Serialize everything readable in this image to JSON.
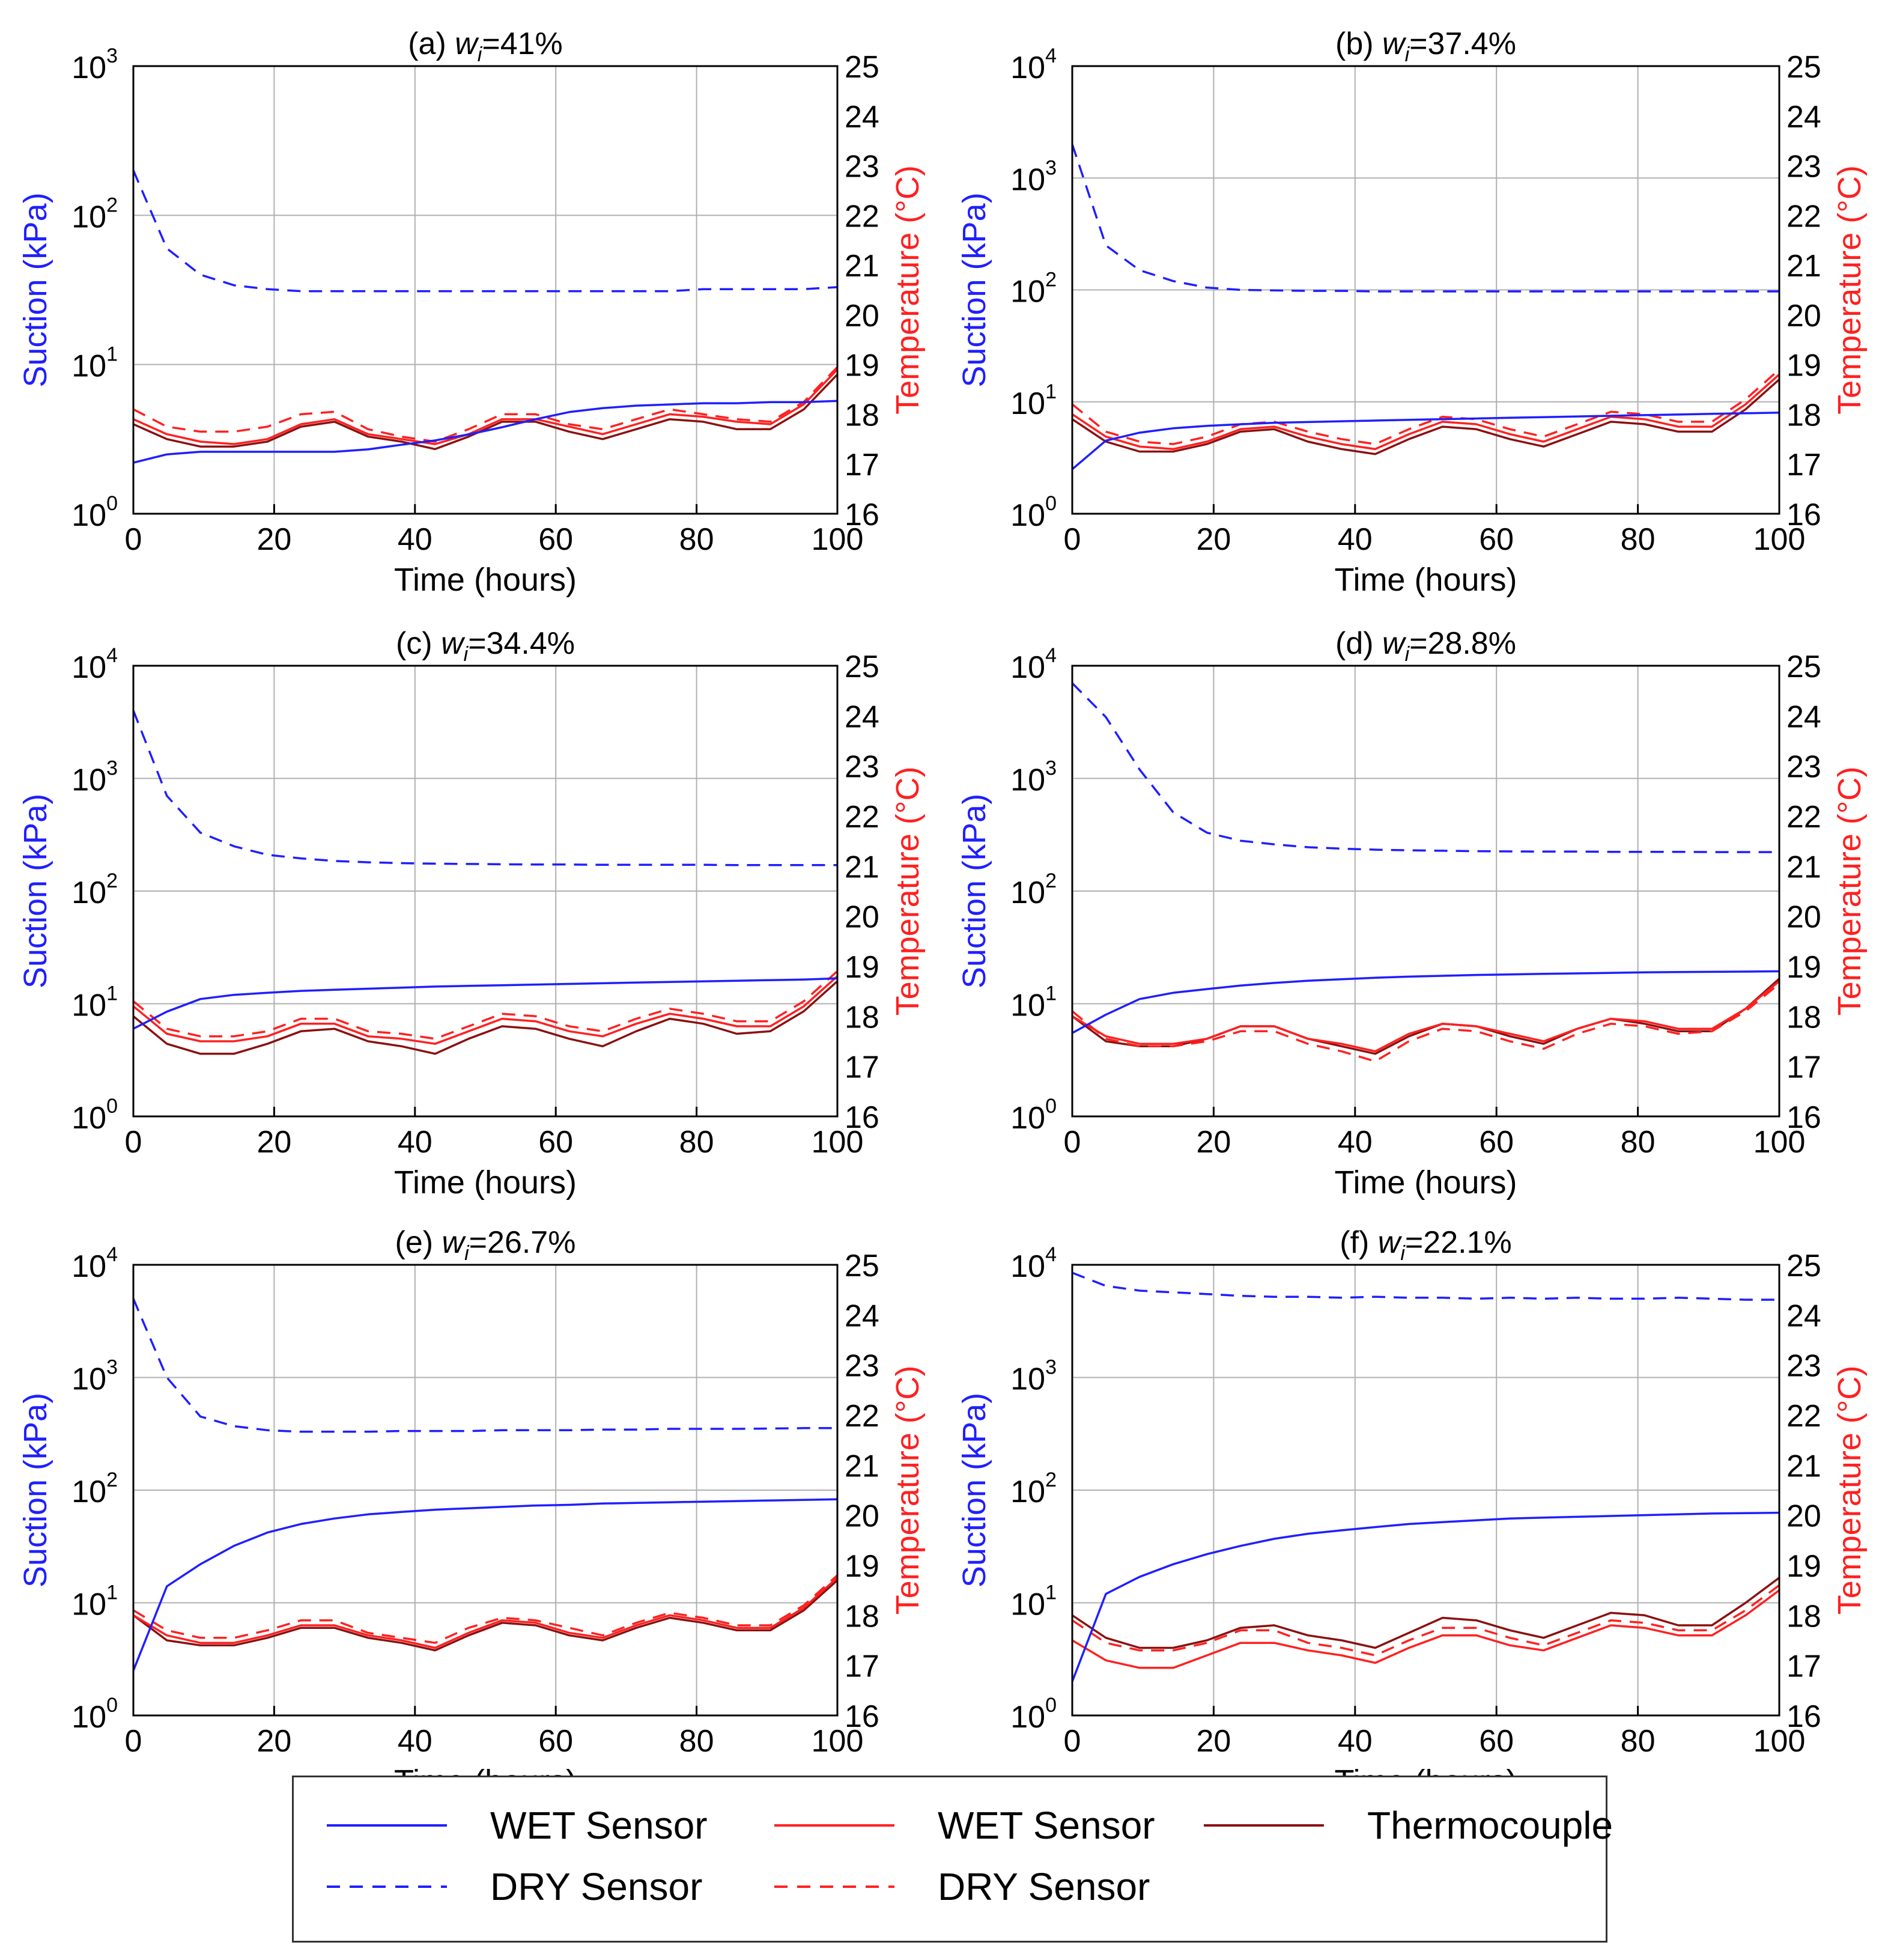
{
  "chart_data": [
    {
      "panel": "(a)",
      "type": "line",
      "title_prefix": "(a) ",
      "title_var": "w",
      "title_sub": "i",
      "title_suffix": "=41%",
      "xlabel": "Time (hours)",
      "ylabel_left": "Suction (kPa)",
      "ylabel_right": "Temperature (°C)",
      "xlim": [
        0,
        100
      ],
      "ylim_left": [
        1,
        1000
      ],
      "ylog_left": true,
      "ylim_right": [
        16,
        25
      ],
      "x_ticks": [
        "0",
        "20",
        "40",
        "60",
        "80",
        "100"
      ],
      "y_left_exps": [
        "0",
        "1",
        "2",
        "3"
      ],
      "y_right_ticks": [
        "16",
        "17",
        "18",
        "19",
        "20",
        "21",
        "22",
        "23",
        "24",
        "25"
      ],
      "grid": true,
      "suction": {
        "x": [
          0,
          100
        ],
        "wet": [
          2.2,
          2.5,
          2.6,
          2.6,
          2.6,
          2.6,
          2.6,
          2.7,
          2.9,
          3.1,
          3.4,
          3.8,
          4.3,
          4.8,
          5.1,
          5.3,
          5.4,
          5.5,
          5.5,
          5.6,
          5.6,
          5.7
        ],
        "dry": [
          200,
          60,
          40,
          34,
          32,
          31,
          31,
          31,
          31,
          31,
          31,
          31,
          31,
          31,
          31,
          31,
          31,
          32,
          32,
          32,
          32,
          33
        ]
      },
      "temperature": {
        "x": [
          0,
          100
        ],
        "wet": [
          17.9,
          17.6,
          17.45,
          17.4,
          17.5,
          17.8,
          17.9,
          17.6,
          17.5,
          17.4,
          17.6,
          17.9,
          17.9,
          17.75,
          17.6,
          17.8,
          18.0,
          17.95,
          17.85,
          17.8,
          18.2,
          18.9
        ],
        "dry": [
          18.1,
          17.75,
          17.65,
          17.65,
          17.75,
          18.0,
          18.05,
          17.7,
          17.55,
          17.45,
          17.7,
          18.0,
          18.0,
          17.8,
          17.7,
          17.9,
          18.1,
          18.0,
          17.9,
          17.85,
          18.25,
          18.95
        ],
        "thermocouple": [
          17.8,
          17.5,
          17.35,
          17.35,
          17.45,
          17.75,
          17.85,
          17.55,
          17.45,
          17.3,
          17.55,
          17.85,
          17.85,
          17.65,
          17.5,
          17.7,
          17.9,
          17.85,
          17.7,
          17.7,
          18.1,
          18.8
        ]
      }
    },
    {
      "panel": "(b)",
      "type": "line",
      "title_prefix": "(b) ",
      "title_var": "w",
      "title_sub": "i",
      "title_suffix": "=37.4%",
      "xlabel": "Time (hours)",
      "ylabel_left": "Suction (kPa)",
      "ylabel_right": "Temperature (°C)",
      "xlim": [
        0,
        100
      ],
      "ylim_left": [
        1,
        10000
      ],
      "ylog_left": true,
      "ylim_right": [
        16,
        25
      ],
      "x_ticks": [
        "0",
        "20",
        "40",
        "60",
        "80",
        "100"
      ],
      "y_left_exps": [
        "0",
        "1",
        "2",
        "3",
        "4"
      ],
      "y_right_ticks": [
        "16",
        "17",
        "18",
        "19",
        "20",
        "21",
        "22",
        "23",
        "24",
        "25"
      ],
      "grid": true,
      "suction": {
        "x": [
          0,
          100
        ],
        "wet": [
          2.5,
          4.5,
          5.3,
          5.8,
          6.1,
          6.3,
          6.5,
          6.6,
          6.7,
          6.8,
          6.9,
          7.0,
          7.1,
          7.2,
          7.3,
          7.4,
          7.5,
          7.6,
          7.7,
          7.8,
          7.9,
          8.0
        ],
        "dry": [
          2000,
          250,
          150,
          120,
          105,
          100,
          99,
          98,
          98,
          97,
          97,
          97,
          97,
          97,
          97,
          97,
          97,
          97,
          97,
          97,
          97,
          97
        ]
      },
      "temperature": {
        "x": [
          0,
          100
        ],
        "wet": [
          18.0,
          17.55,
          17.35,
          17.3,
          17.45,
          17.7,
          17.75,
          17.55,
          17.4,
          17.3,
          17.6,
          17.85,
          17.8,
          17.6,
          17.45,
          17.7,
          17.95,
          17.9,
          17.75,
          17.75,
          18.2,
          18.8
        ],
        "dry": [
          18.2,
          17.65,
          17.45,
          17.4,
          17.55,
          17.8,
          17.85,
          17.65,
          17.5,
          17.4,
          17.7,
          17.95,
          17.9,
          17.7,
          17.55,
          17.8,
          18.05,
          18.0,
          17.85,
          17.85,
          18.3,
          18.9
        ],
        "thermocouple": [
          17.9,
          17.45,
          17.25,
          17.25,
          17.4,
          17.65,
          17.7,
          17.45,
          17.3,
          17.2,
          17.5,
          17.75,
          17.7,
          17.5,
          17.35,
          17.6,
          17.85,
          17.8,
          17.65,
          17.65,
          18.1,
          18.7
        ]
      }
    },
    {
      "panel": "(c)",
      "type": "line",
      "title_prefix": "(c) ",
      "title_var": "w",
      "title_sub": "i",
      "title_suffix": "=34.4%",
      "xlabel": "Time (hours)",
      "ylabel_left": "Suction (kPa)",
      "ylabel_right": "Temperature (°C)",
      "xlim": [
        0,
        100
      ],
      "ylim_left": [
        1,
        10000
      ],
      "ylog_left": true,
      "ylim_right": [
        16,
        25
      ],
      "x_ticks": [
        "0",
        "20",
        "40",
        "60",
        "80",
        "100"
      ],
      "y_left_exps": [
        "0",
        "1",
        "2",
        "3",
        "4"
      ],
      "y_right_ticks": [
        "16",
        "17",
        "18",
        "19",
        "20",
        "21",
        "22",
        "23",
        "24",
        "25"
      ],
      "grid": true,
      "suction": {
        "x": [
          0,
          100
        ],
        "wet": [
          6,
          8.5,
          11,
          12,
          12.5,
          13,
          13.3,
          13.6,
          13.9,
          14.2,
          14.4,
          14.6,
          14.8,
          15.0,
          15.2,
          15.4,
          15.6,
          15.8,
          16.0,
          16.2,
          16.4,
          16.8
        ],
        "dry": [
          4000,
          700,
          330,
          250,
          210,
          195,
          185,
          180,
          177,
          175,
          174,
          173,
          172,
          172,
          171,
          171,
          171,
          171,
          170,
          170,
          170,
          170
        ]
      },
      "temperature": {
        "x": [
          0,
          100
        ],
        "wet": [
          18.2,
          17.65,
          17.5,
          17.5,
          17.6,
          17.85,
          17.85,
          17.6,
          17.55,
          17.45,
          17.7,
          17.95,
          17.9,
          17.7,
          17.6,
          17.85,
          18.05,
          17.95,
          17.8,
          17.8,
          18.2,
          18.8
        ],
        "dry": [
          18.3,
          17.75,
          17.6,
          17.6,
          17.7,
          17.95,
          17.95,
          17.7,
          17.65,
          17.55,
          17.8,
          18.05,
          18.0,
          17.8,
          17.7,
          17.95,
          18.15,
          18.05,
          17.9,
          17.9,
          18.3,
          18.9
        ],
        "thermocouple": [
          18.0,
          17.45,
          17.25,
          17.25,
          17.45,
          17.7,
          17.75,
          17.5,
          17.4,
          17.25,
          17.55,
          17.8,
          17.75,
          17.55,
          17.4,
          17.7,
          17.95,
          17.85,
          17.65,
          17.7,
          18.1,
          18.7
        ]
      }
    },
    {
      "panel": "(d)",
      "type": "line",
      "title_prefix": "(d) ",
      "title_var": "w",
      "title_sub": "i",
      "title_suffix": "=28.8%",
      "xlabel": "Time (hours)",
      "ylabel_left": "Suction (kPa)",
      "ylabel_right": "Temperature (°C)",
      "xlim": [
        0,
        100
      ],
      "ylim_left": [
        1,
        10000
      ],
      "ylog_left": true,
      "ylim_right": [
        16,
        25
      ],
      "x_ticks": [
        "0",
        "20",
        "40",
        "60",
        "80",
        "100"
      ],
      "y_left_exps": [
        "0",
        "1",
        "2",
        "3",
        "4"
      ],
      "y_right_ticks": [
        "16",
        "17",
        "18",
        "19",
        "20",
        "21",
        "22",
        "23",
        "24",
        "25"
      ],
      "grid": true,
      "suction": {
        "x": [
          0,
          100
        ],
        "wet": [
          5.5,
          8,
          11,
          12.5,
          13.5,
          14.5,
          15.3,
          16,
          16.5,
          17,
          17.4,
          17.7,
          18.0,
          18.2,
          18.4,
          18.6,
          18.8,
          19.0,
          19.1,
          19.2,
          19.3,
          19.4
        ],
        "dry": [
          7000,
          3500,
          1200,
          500,
          330,
          280,
          260,
          245,
          238,
          233,
          230,
          228,
          226,
          225,
          224,
          224,
          223,
          223,
          223,
          222,
          222,
          222
        ]
      },
      "temperature": {
        "x": [
          0,
          100
        ],
        "wet": [
          18.0,
          17.6,
          17.45,
          17.45,
          17.55,
          17.8,
          17.8,
          17.55,
          17.45,
          17.3,
          17.65,
          17.85,
          17.8,
          17.65,
          17.5,
          17.75,
          17.95,
          17.9,
          17.75,
          17.75,
          18.15,
          18.7
        ],
        "dry": [
          18.1,
          17.55,
          17.4,
          17.4,
          17.5,
          17.7,
          17.7,
          17.45,
          17.3,
          17.1,
          17.5,
          17.75,
          17.7,
          17.5,
          17.35,
          17.65,
          17.85,
          17.8,
          17.65,
          17.7,
          18.1,
          18.65
        ],
        "thermocouple": [
          18.0,
          17.5,
          17.4,
          17.4,
          17.55,
          17.8,
          17.8,
          17.55,
          17.4,
          17.25,
          17.6,
          17.85,
          17.8,
          17.6,
          17.45,
          17.75,
          17.95,
          17.85,
          17.7,
          17.7,
          18.15,
          18.75
        ]
      }
    },
    {
      "panel": "(e)",
      "type": "line",
      "title_prefix": "(e) ",
      "title_var": "w",
      "title_sub": "i",
      "title_suffix": "=26.7%",
      "xlabel": "Time (hours)",
      "ylabel_left": "Suction (kPa)",
      "ylabel_right": "Temperature (°C)",
      "xlim": [
        0,
        100
      ],
      "ylim_left": [
        1,
        10000
      ],
      "ylog_left": true,
      "ylim_right": [
        16,
        25
      ],
      "x_ticks": [
        "0",
        "20",
        "40",
        "60",
        "80",
        "100"
      ],
      "y_left_exps": [
        "0",
        "1",
        "2",
        "3",
        "4"
      ],
      "y_right_ticks": [
        "16",
        "17",
        "18",
        "19",
        "20",
        "21",
        "22",
        "23",
        "24",
        "25"
      ],
      "grid": true,
      "suction": {
        "x": [
          0,
          100
        ],
        "wet": [
          2.5,
          14,
          22,
          32,
          42,
          50,
          56,
          61,
          64,
          67,
          69,
          71,
          73,
          74,
          76,
          77,
          78,
          79,
          80,
          81,
          82,
          83
        ],
        "dry": [
          5000,
          1000,
          450,
          370,
          340,
          330,
          330,
          330,
          335,
          335,
          335,
          340,
          340,
          340,
          345,
          345,
          350,
          350,
          350,
          352,
          355,
          355
        ]
      },
      "temperature": {
        "x": [
          0,
          100
        ],
        "wet": [
          18.0,
          17.6,
          17.45,
          17.45,
          17.6,
          17.8,
          17.8,
          17.6,
          17.5,
          17.35,
          17.65,
          17.9,
          17.85,
          17.65,
          17.55,
          17.8,
          18.0,
          17.9,
          17.75,
          17.75,
          18.15,
          18.75
        ],
        "dry": [
          18.1,
          17.7,
          17.55,
          17.55,
          17.7,
          17.9,
          17.9,
          17.65,
          17.55,
          17.45,
          17.75,
          17.95,
          17.9,
          17.75,
          17.6,
          17.85,
          18.05,
          17.95,
          17.8,
          17.8,
          18.2,
          18.8
        ],
        "thermocouple": [
          18.0,
          17.5,
          17.4,
          17.4,
          17.55,
          17.75,
          17.75,
          17.55,
          17.45,
          17.3,
          17.6,
          17.85,
          17.8,
          17.6,
          17.5,
          17.75,
          17.95,
          17.85,
          17.7,
          17.7,
          18.1,
          18.7
        ]
      }
    },
    {
      "panel": "(f)",
      "type": "line",
      "title_prefix": "(f) ",
      "title_var": "w",
      "title_sub": "i",
      "title_suffix": "=22.1%",
      "xlabel": "Time (hours)",
      "ylabel_left": "Suction (kPa)",
      "ylabel_right": "Temperature (°C)",
      "xlim": [
        0,
        100
      ],
      "ylim_left": [
        1,
        10000
      ],
      "ylog_left": true,
      "ylim_right": [
        16,
        25
      ],
      "x_ticks": [
        "0",
        "20",
        "40",
        "60",
        "80",
        "100"
      ],
      "y_left_exps": [
        "0",
        "1",
        "2",
        "3",
        "4"
      ],
      "y_right_ticks": [
        "16",
        "17",
        "18",
        "19",
        "20",
        "21",
        "22",
        "23",
        "24",
        "25"
      ],
      "grid": true,
      "suction": {
        "x": [
          0,
          100
        ],
        "wet": [
          2,
          12,
          17,
          22,
          27,
          32,
          37,
          41,
          44,
          47,
          50,
          52,
          54,
          56,
          57,
          58,
          59,
          60,
          61,
          62,
          62.5,
          63
        ],
        "dry": [
          8500,
          6500,
          5900,
          5700,
          5500,
          5300,
          5200,
          5200,
          5100,
          5200,
          5100,
          5100,
          5000,
          5100,
          5000,
          5100,
          5000,
          5000,
          5100,
          5000,
          4900,
          4900
        ]
      },
      "temperature": {
        "x": [
          0,
          100
        ],
        "wet": [
          17.5,
          17.1,
          16.95,
          16.95,
          17.2,
          17.45,
          17.45,
          17.3,
          17.2,
          17.05,
          17.35,
          17.6,
          17.6,
          17.4,
          17.3,
          17.55,
          17.8,
          17.75,
          17.6,
          17.6,
          18.0,
          18.5
        ],
        "dry": [
          17.9,
          17.45,
          17.3,
          17.3,
          17.45,
          17.7,
          17.7,
          17.45,
          17.35,
          17.2,
          17.5,
          17.75,
          17.75,
          17.55,
          17.4,
          17.65,
          17.9,
          17.85,
          17.7,
          17.7,
          18.1,
          18.6
        ],
        "thermocouple": [
          18.0,
          17.55,
          17.35,
          17.35,
          17.5,
          17.75,
          17.8,
          17.6,
          17.5,
          17.35,
          17.65,
          17.95,
          17.9,
          17.7,
          17.55,
          17.8,
          18.05,
          18.0,
          17.8,
          17.8,
          18.25,
          18.75
        ]
      }
    }
  ],
  "legend": {
    "items": [
      {
        "label": "WET Sensor",
        "color": "#1f1fff",
        "dash": "solid"
      },
      {
        "label": "DRY Sensor",
        "color": "#1f1fff",
        "dash": "dashed"
      },
      {
        "label": "WET Sensor",
        "color": "#ff2020",
        "dash": "solid"
      },
      {
        "label": "DRY Sensor",
        "color": "#ff2020",
        "dash": "dashed"
      },
      {
        "label": "Thermocouple",
        "color": "#8b1010",
        "dash": "solid"
      }
    ]
  },
  "colors": {
    "suction": "#1f1fff",
    "temperature": "#ff2020",
    "thermocouple": "#8b1010",
    "grid": "#b0b0b0"
  }
}
